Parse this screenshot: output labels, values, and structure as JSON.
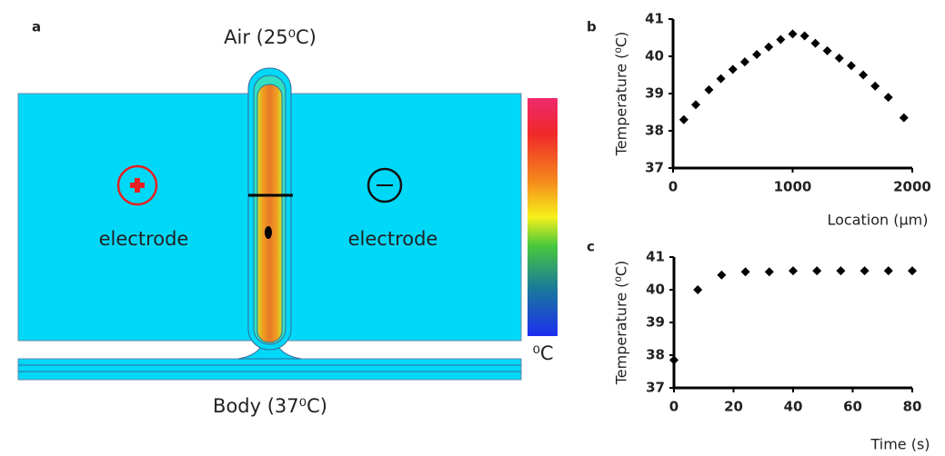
{
  "diagram": {
    "panel": "a",
    "top_label": "Air (25⁰C)",
    "bottom_label": "Body (37⁰C)",
    "left_electrode": "electrode",
    "right_electrode": "electrode",
    "colorbar_unit": "⁰C"
  },
  "chart_data": [
    {
      "type": "scatter",
      "panel": "b",
      "xlabel": "Location (µm)",
      "ylabel": "Temperature (⁰C)",
      "color": "#000000",
      "x": [
        90,
        190,
        300,
        400,
        500,
        600,
        700,
        800,
        900,
        1000,
        1100,
        1190,
        1290,
        1390,
        1490,
        1590,
        1690,
        1800,
        1930
      ],
      "values": [
        38.3,
        38.7,
        39.1,
        39.4,
        39.65,
        39.85,
        40.05,
        40.25,
        40.45,
        40.6,
        40.55,
        40.35,
        40.15,
        39.95,
        39.75,
        39.5,
        39.2,
        38.9,
        38.35
      ],
      "xlim": [
        0,
        2000
      ],
      "ylim": [
        37,
        41
      ],
      "xticks": [
        0,
        1000,
        2000
      ],
      "yticks": [
        37,
        38,
        39,
        40,
        41
      ]
    },
    {
      "type": "scatter",
      "panel": "c",
      "xlabel": "Time (s)",
      "ylabel": "Temperature (⁰C)",
      "color": "#000000",
      "x": [
        0,
        8,
        16,
        24,
        32,
        40,
        48,
        56,
        64,
        72,
        80
      ],
      "values": [
        37.85,
        40.0,
        40.45,
        40.55,
        40.55,
        40.58,
        40.58,
        40.58,
        40.58,
        40.58,
        40.58
      ],
      "xlim": [
        0,
        80
      ],
      "ylim": [
        37,
        41
      ],
      "xticks": [
        0,
        20,
        40,
        60,
        80
      ],
      "yticks": [
        37,
        38,
        39,
        40,
        41
      ]
    }
  ]
}
